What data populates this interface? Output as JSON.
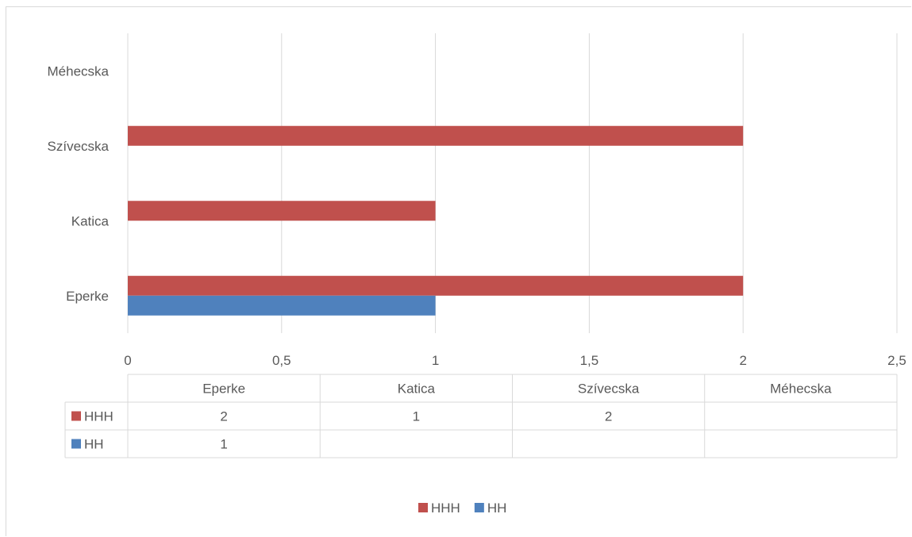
{
  "chart_data": {
    "type": "bar",
    "orientation": "horizontal",
    "categories": [
      "Eperke",
      "Katica",
      "Szívecska",
      "Méhecska"
    ],
    "series": [
      {
        "name": "HHH",
        "values": [
          2,
          1,
          2,
          null
        ],
        "color": "#c0504d"
      },
      {
        "name": "HH",
        "values": [
          1,
          null,
          null,
          null
        ],
        "color": "#4f81bd"
      }
    ],
    "xlim": [
      0,
      2.5
    ],
    "xticks": [
      "0",
      "0,5",
      "1",
      "1,5",
      "2",
      "2,5"
    ],
    "grid": true,
    "data_table": {
      "rows": [
        {
          "name": "HHH",
          "cells": [
            "2",
            "1",
            "2",
            ""
          ]
        },
        {
          "name": "HH",
          "cells": [
            "1",
            "",
            "",
            ""
          ]
        }
      ]
    },
    "legend": {
      "position": "bottom",
      "entries": [
        "HHH",
        "HH"
      ]
    }
  }
}
